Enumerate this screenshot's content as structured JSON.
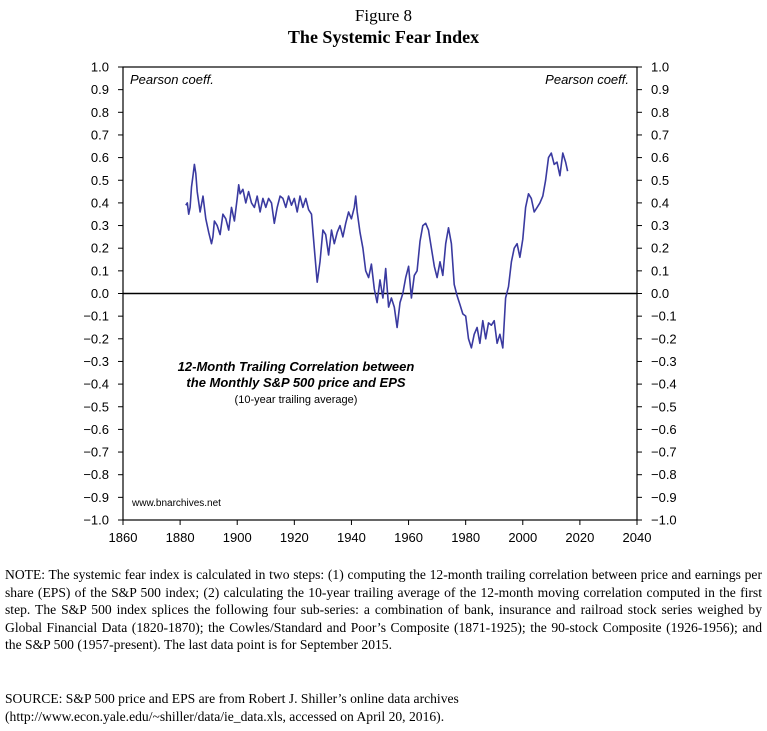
{
  "figure": {
    "number": "Figure 8",
    "title": "The Systemic Fear Index"
  },
  "chart_data": {
    "type": "line",
    "left_axis_label": "Pearson coeff.",
    "right_axis_label": "Pearson coeff.",
    "annotation_line1": "12-Month Trailing Correlation between",
    "annotation_line2": "the Monthly S&P 500 price and EPS",
    "annotation_line3": "(10-year trailing average)",
    "watermark": "www.bnarchives.net",
    "xlim": [
      1860,
      2040
    ],
    "ylim": [
      -1.0,
      1.0
    ],
    "x_ticks": [
      1860,
      1880,
      1900,
      1920,
      1940,
      1960,
      1980,
      2000,
      2020,
      2040
    ],
    "y_ticks": [
      {
        "v": 1.0,
        "label": "1.0"
      },
      {
        "v": 0.9,
        "label": "0.9"
      },
      {
        "v": 0.8,
        "label": "0.8"
      },
      {
        "v": 0.7,
        "label": "0.7"
      },
      {
        "v": 0.6,
        "label": "0.6"
      },
      {
        "v": 0.5,
        "label": "0.5"
      },
      {
        "v": 0.4,
        "label": "0.4"
      },
      {
        "v": 0.3,
        "label": "0.3"
      },
      {
        "v": 0.2,
        "label": "0.2"
      },
      {
        "v": 0.1,
        "label": "0.1"
      },
      {
        "v": 0.0,
        "label": "0.0"
      },
      {
        "v": -0.1,
        "label": "−0.1"
      },
      {
        "v": -0.2,
        "label": "−0.2"
      },
      {
        "v": -0.3,
        "label": "−0.3"
      },
      {
        "v": -0.4,
        "label": "−0.4"
      },
      {
        "v": -0.5,
        "label": "−0.5"
      },
      {
        "v": -0.6,
        "label": "−0.6"
      },
      {
        "v": -0.7,
        "label": "−0.7"
      },
      {
        "v": -0.8,
        "label": "−0.8"
      },
      {
        "v": -0.9,
        "label": "−0.9"
      },
      {
        "v": -1.0,
        "label": "−1.0"
      }
    ],
    "zero_line": true,
    "grid": false,
    "series": [
      {
        "color": "#3a3aa0",
        "x": [
          1882,
          1882.5,
          1883,
          1883.5,
          1884,
          1884.5,
          1885,
          1885.5,
          1886,
          1887,
          1888,
          1889,
          1890,
          1891,
          1891.5,
          1892,
          1893,
          1894,
          1895,
          1896,
          1897,
          1898,
          1899,
          1900,
          1900.5,
          1901,
          1902,
          1903,
          1904,
          1905,
          1906,
          1907,
          1908,
          1909,
          1910,
          1911,
          1912,
          1913,
          1914,
          1915,
          1916,
          1917,
          1918,
          1919,
          1920,
          1921,
          1922,
          1923,
          1924,
          1925,
          1926,
          1927,
          1928,
          1929,
          1930,
          1931,
          1932,
          1933,
          1934,
          1935,
          1936,
          1937,
          1938,
          1939,
          1940,
          1941,
          1941.5,
          1942,
          1943,
          1944,
          1945,
          1946,
          1947,
          1948,
          1949,
          1950,
          1951,
          1952,
          1953,
          1954,
          1955,
          1956,
          1957,
          1958,
          1959,
          1960,
          1961,
          1962,
          1963,
          1964,
          1965,
          1966,
          1967,
          1968,
          1969,
          1970,
          1971,
          1972,
          1973,
          1974,
          1975,
          1976,
          1977,
          1978,
          1979,
          1980,
          1981,
          1982,
          1983,
          1984,
          1985,
          1986,
          1987,
          1988,
          1989,
          1990,
          1991,
          1992,
          1993,
          1994,
          1995,
          1996,
          1997,
          1998,
          1999,
          2000,
          2001,
          2002,
          2003,
          2004,
          2005,
          2006,
          2007,
          2008,
          2009,
          2010,
          2011,
          2012,
          2013,
          2014,
          2015,
          2015.7
        ],
        "y": [
          0.39,
          0.4,
          0.35,
          0.38,
          0.47,
          0.52,
          0.57,
          0.53,
          0.45,
          0.36,
          0.43,
          0.33,
          0.27,
          0.22,
          0.25,
          0.32,
          0.3,
          0.26,
          0.35,
          0.33,
          0.28,
          0.38,
          0.32,
          0.42,
          0.48,
          0.44,
          0.46,
          0.4,
          0.45,
          0.4,
          0.38,
          0.43,
          0.36,
          0.42,
          0.38,
          0.42,
          0.4,
          0.31,
          0.38,
          0.43,
          0.42,
          0.38,
          0.43,
          0.39,
          0.42,
          0.36,
          0.43,
          0.38,
          0.42,
          0.37,
          0.35,
          0.2,
          0.05,
          0.14,
          0.28,
          0.26,
          0.17,
          0.28,
          0.22,
          0.27,
          0.3,
          0.25,
          0.31,
          0.36,
          0.33,
          0.38,
          0.43,
          0.36,
          0.27,
          0.2,
          0.1,
          0.07,
          0.13,
          0.02,
          -0.04,
          0.06,
          -0.02,
          0.11,
          -0.06,
          -0.02,
          -0.06,
          -0.15,
          -0.04,
          0.0,
          0.07,
          0.12,
          -0.02,
          0.08,
          0.1,
          0.23,
          0.3,
          0.31,
          0.28,
          0.2,
          0.12,
          0.07,
          0.14,
          0.08,
          0.22,
          0.29,
          0.22,
          0.04,
          -0.01,
          -0.05,
          -0.09,
          -0.1,
          -0.2,
          -0.24,
          -0.18,
          -0.15,
          -0.22,
          -0.12,
          -0.2,
          -0.13,
          -0.14,
          -0.12,
          -0.22,
          -0.18,
          -0.24,
          -0.02,
          0.03,
          0.14,
          0.2,
          0.22,
          0.16,
          0.24,
          0.38,
          0.44,
          0.42,
          0.36,
          0.38,
          0.4,
          0.43,
          0.5,
          0.6,
          0.62,
          0.57,
          0.58,
          0.52,
          0.62,
          0.58,
          0.54
        ]
      }
    ]
  },
  "note": "NOTE: The systemic fear index is calculated in two steps: (1) computing the 12-month trailing correlation between price and earnings per share (EPS) of the S&P 500 index; (2) calculating the 10-year trailing average of the 12-month moving correlation computed in the first step. The S&P 500 index splices the following four sub-series: a combination of bank, insurance and railroad stock series weighed by Global Financial Data (1820-1870); the Cowles/Standard and Poor’s Composite (1871-1925); the 90-stock Composite (1926-1956); and the S&P 500 (1957-present). The last data point is for September 2015.",
  "source_line1": "SOURCE: S&P 500 price and EPS are from Robert J. Shiller’s online data archives",
  "source_line2": "(http://www.econ.yale.edu/~shiller/data/ie_data.xls, accessed on April 20, 2016)."
}
